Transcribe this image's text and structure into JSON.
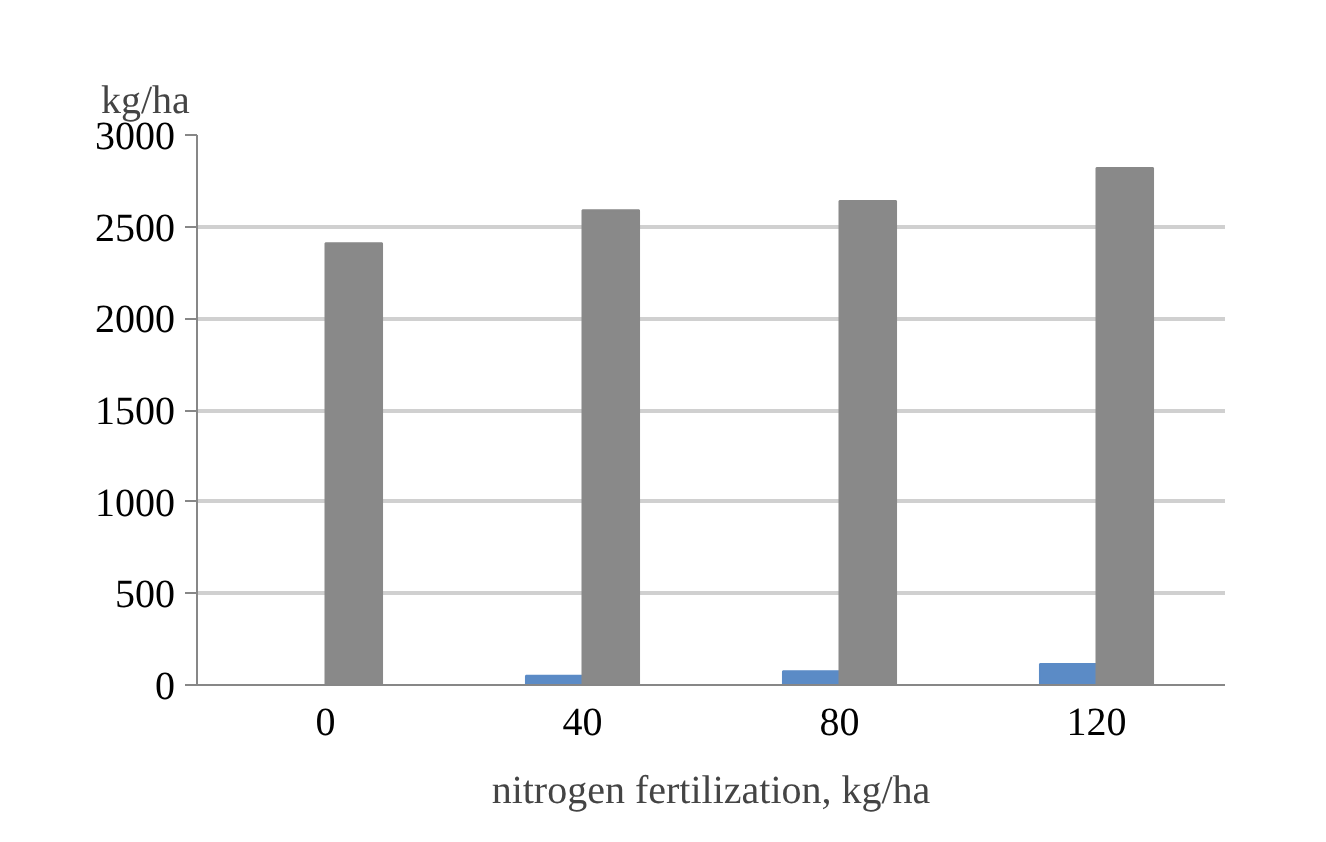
{
  "chart_data": {
    "type": "bar",
    "ylabel": "kg/ha",
    "xlabel": "nitrogen fertilization, kg/ha",
    "categories": [
      "0",
      "40",
      "80",
      "120"
    ],
    "series": [
      {
        "color": "#5b8bc6",
        "values": [
          0,
          50,
          75,
          115
        ]
      },
      {
        "color": "#898989",
        "values": [
          2410,
          2590,
          2640,
          2820
        ]
      }
    ],
    "ylim": [
      0,
      3000
    ],
    "yticks": [
      0,
      500,
      1000,
      1500,
      2000,
      2500,
      3000
    ],
    "grid": "y"
  }
}
